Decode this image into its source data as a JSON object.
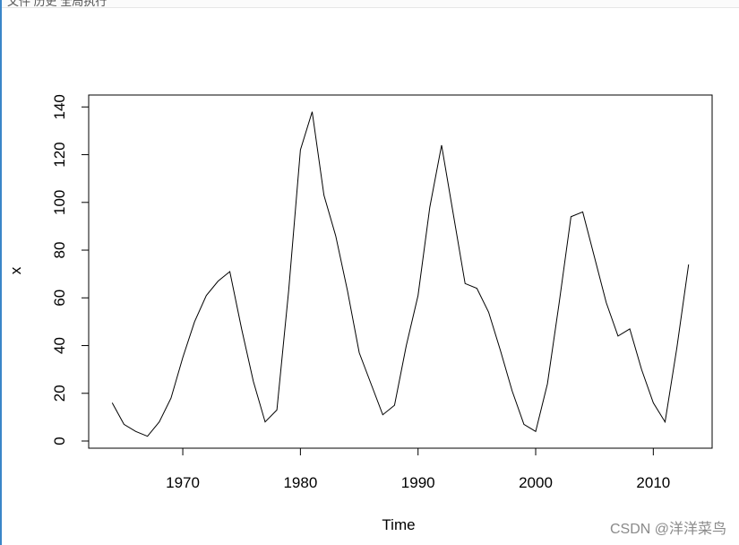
{
  "window": {
    "top_text": "文件  历史  全局执行"
  },
  "watermark": "CSDN @洋洋菜鸟",
  "chart_data": {
    "type": "line",
    "xlabel": "Time",
    "ylabel": "x",
    "xlim": [
      1962,
      2015
    ],
    "ylim": [
      -3,
      145
    ],
    "x_ticks": [
      1970,
      1980,
      1990,
      2000,
      2010
    ],
    "y_ticks": [
      0,
      20,
      40,
      60,
      80,
      100,
      120,
      140
    ],
    "grid": false,
    "series": [
      {
        "x": [
          1964,
          1965,
          1966,
          1967,
          1968,
          1969,
          1970,
          1971,
          1972,
          1973,
          1974,
          1975,
          1976,
          1977,
          1978,
          1979,
          1980,
          1981,
          1982,
          1983,
          1984,
          1985,
          1986,
          1987,
          1988,
          1989,
          1990,
          1991,
          1992,
          1993,
          1994,
          1995,
          1996,
          1997,
          1998,
          1999,
          2000,
          2001,
          2002,
          2003,
          2004,
          2005,
          2006,
          2007,
          2008,
          2009,
          2010,
          2011,
          2012,
          2013
        ],
        "values": [
          16,
          7,
          4,
          2,
          8,
          18,
          35,
          50,
          61,
          67,
          71,
          47,
          25,
          8,
          13,
          63,
          122,
          138,
          103,
          86,
          63,
          37,
          24,
          11,
          15,
          40,
          61,
          98,
          124,
          95,
          66,
          64,
          54,
          38,
          21,
          7,
          4,
          24,
          58,
          94,
          96,
          77,
          58,
          44,
          47,
          30,
          16,
          8,
          39,
          74
        ]
      }
    ]
  }
}
